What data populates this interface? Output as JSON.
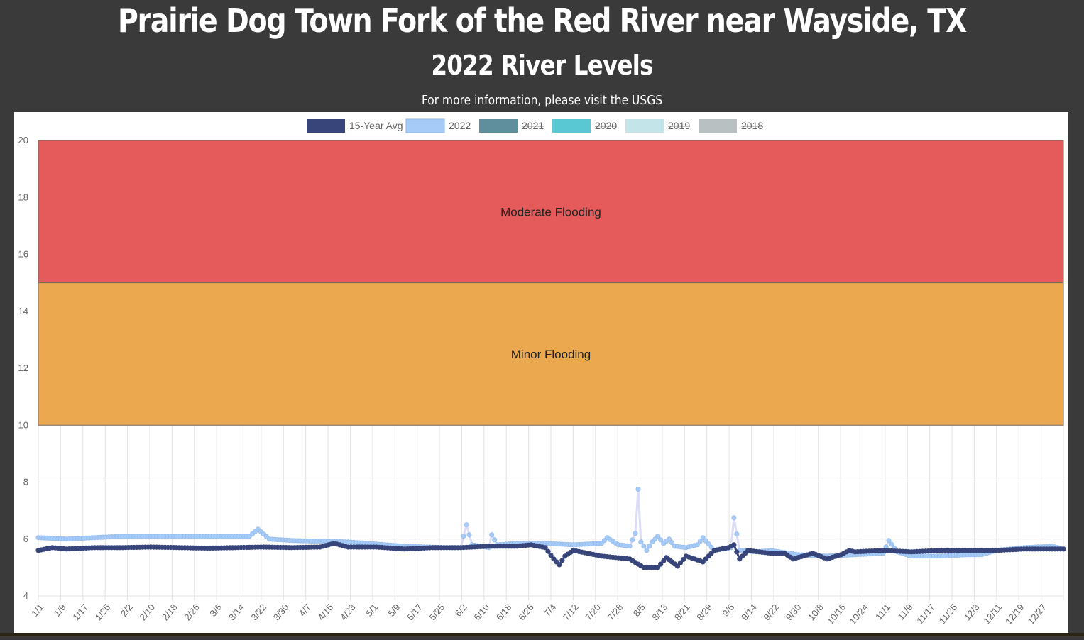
{
  "header": {
    "title": "Prairie Dog Town Fork of the Red River near Wayside, TX",
    "subtitle": "2022 River Levels",
    "info_text": "For more information, please visit the ",
    "info_link": "USGS"
  },
  "chart_data": {
    "type": "line",
    "ylim": [
      4,
      20
    ],
    "yticks": [
      4,
      6,
      8,
      10,
      12,
      14,
      16,
      18,
      20
    ],
    "grid": true,
    "legend_position": "top",
    "xtick_labels": [
      "1/1",
      "1/9",
      "1/17",
      "1/25",
      "2/2",
      "2/10",
      "2/18",
      "2/26",
      "3/6",
      "3/14",
      "3/22",
      "3/30",
      "4/7",
      "4/15",
      "4/23",
      "5/1",
      "5/9",
      "5/17",
      "5/25",
      "6/2",
      "6/10",
      "6/18",
      "6/26",
      "7/4",
      "7/12",
      "7/20",
      "7/28",
      "8/5",
      "8/13",
      "8/21",
      "8/29",
      "9/6",
      "9/14",
      "9/22",
      "9/30",
      "10/8",
      "10/16",
      "10/24",
      "11/1",
      "11/9",
      "11/17",
      "11/25",
      "12/3",
      "12/11",
      "12/19",
      "12/27"
    ],
    "bands": [
      {
        "label": "Moderate Flooding",
        "from": 15,
        "to": 20,
        "color": "#e55b5b"
      },
      {
        "label": "Minor Flooding",
        "from": 10,
        "to": 15,
        "color": "#eba84f"
      }
    ],
    "legend": [
      {
        "label": "15-Year Avg",
        "color": "#37457a",
        "hidden": false
      },
      {
        "label": "2022",
        "color": "#a6cbf7",
        "hidden": false
      },
      {
        "label": "2021",
        "color": "#5f8f9c",
        "hidden": true
      },
      {
        "label": "2020",
        "color": "#5ac8d2",
        "hidden": true
      },
      {
        "label": "2019",
        "color": "#c3e4e8",
        "hidden": true
      },
      {
        "label": "2018",
        "color": "#b9c0c2",
        "hidden": true
      }
    ],
    "series": [
      {
        "name": "15-Year Avg",
        "color": "#37457a",
        "keypoints": [
          [
            0,
            5.6
          ],
          [
            5,
            5.7
          ],
          [
            10,
            5.65
          ],
          [
            20,
            5.7
          ],
          [
            30,
            5.7
          ],
          [
            40,
            5.72
          ],
          [
            50,
            5.7
          ],
          [
            60,
            5.68
          ],
          [
            70,
            5.7
          ],
          [
            80,
            5.72
          ],
          [
            90,
            5.7
          ],
          [
            100,
            5.72
          ],
          [
            105,
            5.85
          ],
          [
            110,
            5.72
          ],
          [
            120,
            5.72
          ],
          [
            130,
            5.65
          ],
          [
            140,
            5.7
          ],
          [
            150,
            5.7
          ],
          [
            160,
            5.75
          ],
          [
            170,
            5.75
          ],
          [
            175,
            5.8
          ],
          [
            180,
            5.7
          ],
          [
            183,
            5.3
          ],
          [
            185,
            5.1
          ],
          [
            187,
            5.4
          ],
          [
            190,
            5.6
          ],
          [
            195,
            5.5
          ],
          [
            200,
            5.4
          ],
          [
            210,
            5.3
          ],
          [
            215,
            5.0
          ],
          [
            220,
            5.0
          ],
          [
            223,
            5.35
          ],
          [
            227,
            5.05
          ],
          [
            230,
            5.4
          ],
          [
            236,
            5.2
          ],
          [
            240,
            5.6
          ],
          [
            245,
            5.7
          ],
          [
            247,
            5.8
          ],
          [
            249,
            5.3
          ],
          [
            252,
            5.6
          ],
          [
            260,
            5.5
          ],
          [
            265,
            5.5
          ],
          [
            268,
            5.3
          ],
          [
            275,
            5.5
          ],
          [
            280,
            5.3
          ],
          [
            285,
            5.45
          ],
          [
            288,
            5.6
          ],
          [
            290,
            5.55
          ],
          [
            300,
            5.6
          ],
          [
            310,
            5.55
          ],
          [
            320,
            5.6
          ],
          [
            330,
            5.6
          ],
          [
            340,
            5.6
          ],
          [
            350,
            5.65
          ],
          [
            360,
            5.65
          ],
          [
            364,
            5.65
          ]
        ]
      },
      {
        "name": "2022",
        "color": "#a6cbf7",
        "keypoints": [
          [
            0,
            6.05
          ],
          [
            10,
            6.0
          ],
          [
            20,
            6.05
          ],
          [
            30,
            6.1
          ],
          [
            40,
            6.1
          ],
          [
            50,
            6.1
          ],
          [
            60,
            6.1
          ],
          [
            75,
            6.1
          ],
          [
            78,
            6.35
          ],
          [
            82,
            6.0
          ],
          [
            90,
            5.95
          ],
          [
            110,
            5.9
          ],
          [
            130,
            5.75
          ],
          [
            145,
            5.7
          ],
          [
            150,
            5.7
          ],
          [
            152,
            6.5
          ],
          [
            154,
            5.8
          ],
          [
            160,
            5.7
          ],
          [
            161,
            6.15
          ],
          [
            163,
            5.8
          ],
          [
            170,
            5.85
          ],
          [
            180,
            5.85
          ],
          [
            190,
            5.8
          ],
          [
            200,
            5.85
          ],
          [
            202,
            6.05
          ],
          [
            206,
            5.8
          ],
          [
            210,
            5.75
          ],
          [
            212,
            6.2
          ],
          [
            213,
            7.75
          ],
          [
            214,
            5.9
          ],
          [
            216,
            5.6
          ],
          [
            218,
            5.9
          ],
          [
            220,
            6.1
          ],
          [
            222,
            5.85
          ],
          [
            224,
            6.0
          ],
          [
            226,
            5.75
          ],
          [
            230,
            5.7
          ],
          [
            234,
            5.8
          ],
          [
            236,
            6.05
          ],
          [
            240,
            5.6
          ],
          [
            246,
            5.7
          ],
          [
            247,
            6.75
          ],
          [
            249,
            5.6
          ],
          [
            255,
            5.55
          ],
          [
            260,
            5.6
          ],
          [
            270,
            5.45
          ],
          [
            280,
            5.4
          ],
          [
            290,
            5.45
          ],
          [
            300,
            5.5
          ],
          [
            302,
            5.95
          ],
          [
            305,
            5.55
          ],
          [
            310,
            5.4
          ],
          [
            320,
            5.4
          ],
          [
            330,
            5.45
          ],
          [
            335,
            5.45
          ],
          [
            340,
            5.6
          ],
          [
            350,
            5.7
          ],
          [
            360,
            5.75
          ],
          [
            364,
            5.65
          ]
        ]
      }
    ]
  }
}
